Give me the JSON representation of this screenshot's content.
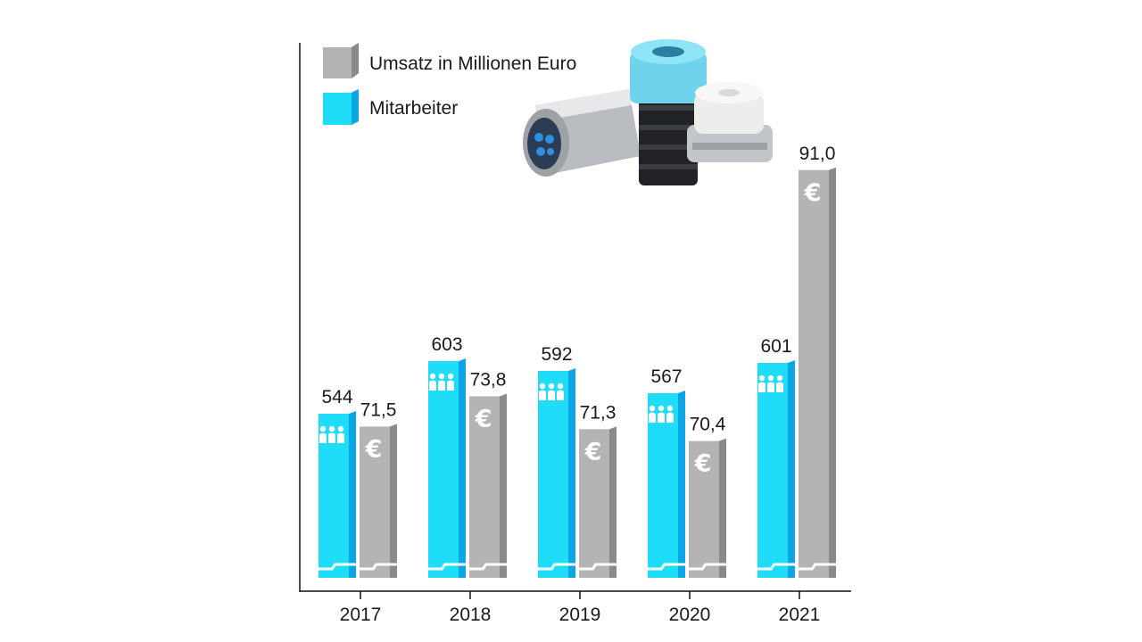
{
  "chart_data": {
    "type": "bar",
    "categories": [
      "2017",
      "2018",
      "2019",
      "2020",
      "2021"
    ],
    "series": [
      {
        "name": "Mitarbeiter",
        "values": [
          544,
          603,
          592,
          567,
          601
        ],
        "labels": [
          "544",
          "603",
          "592",
          "567",
          "601"
        ],
        "color": "#1fdcf8",
        "side_color": "#0aa6e6",
        "icon": "people-icon"
      },
      {
        "name": "Umsatz in Millionen Euro",
        "values": [
          71.5,
          73.8,
          71.3,
          70.4,
          91.0
        ],
        "labels": [
          "71,5",
          "73,8",
          "71,3",
          "70,4",
          "91,0"
        ],
        "color": "#b4b4b4",
        "side_color": "#8a8a8a",
        "icon": "euro-icon"
      }
    ],
    "axis_break": true,
    "grid": false,
    "legend_position": "top-left",
    "decoration": "product-photo-connectors"
  }
}
